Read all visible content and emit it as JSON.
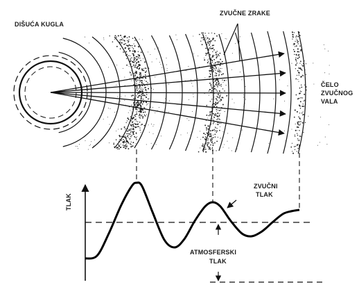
{
  "labels": {
    "source": "DIŠUĆA KUGLA",
    "rays": "ZVUČNE ZRAKE",
    "front_1": "ČELO",
    "front_2": "ZVUČNOG",
    "front_3": "VALA",
    "y_axis": "TLAK",
    "sound_pressure_1": "ZVUČNI",
    "sound_pressure_2": "TLAK",
    "atmospheric_1": "ATMOSFERSKI",
    "atmospheric_2": "TLAK"
  },
  "colors": {
    "ink": "#111111",
    "background": "#ffffff"
  }
}
